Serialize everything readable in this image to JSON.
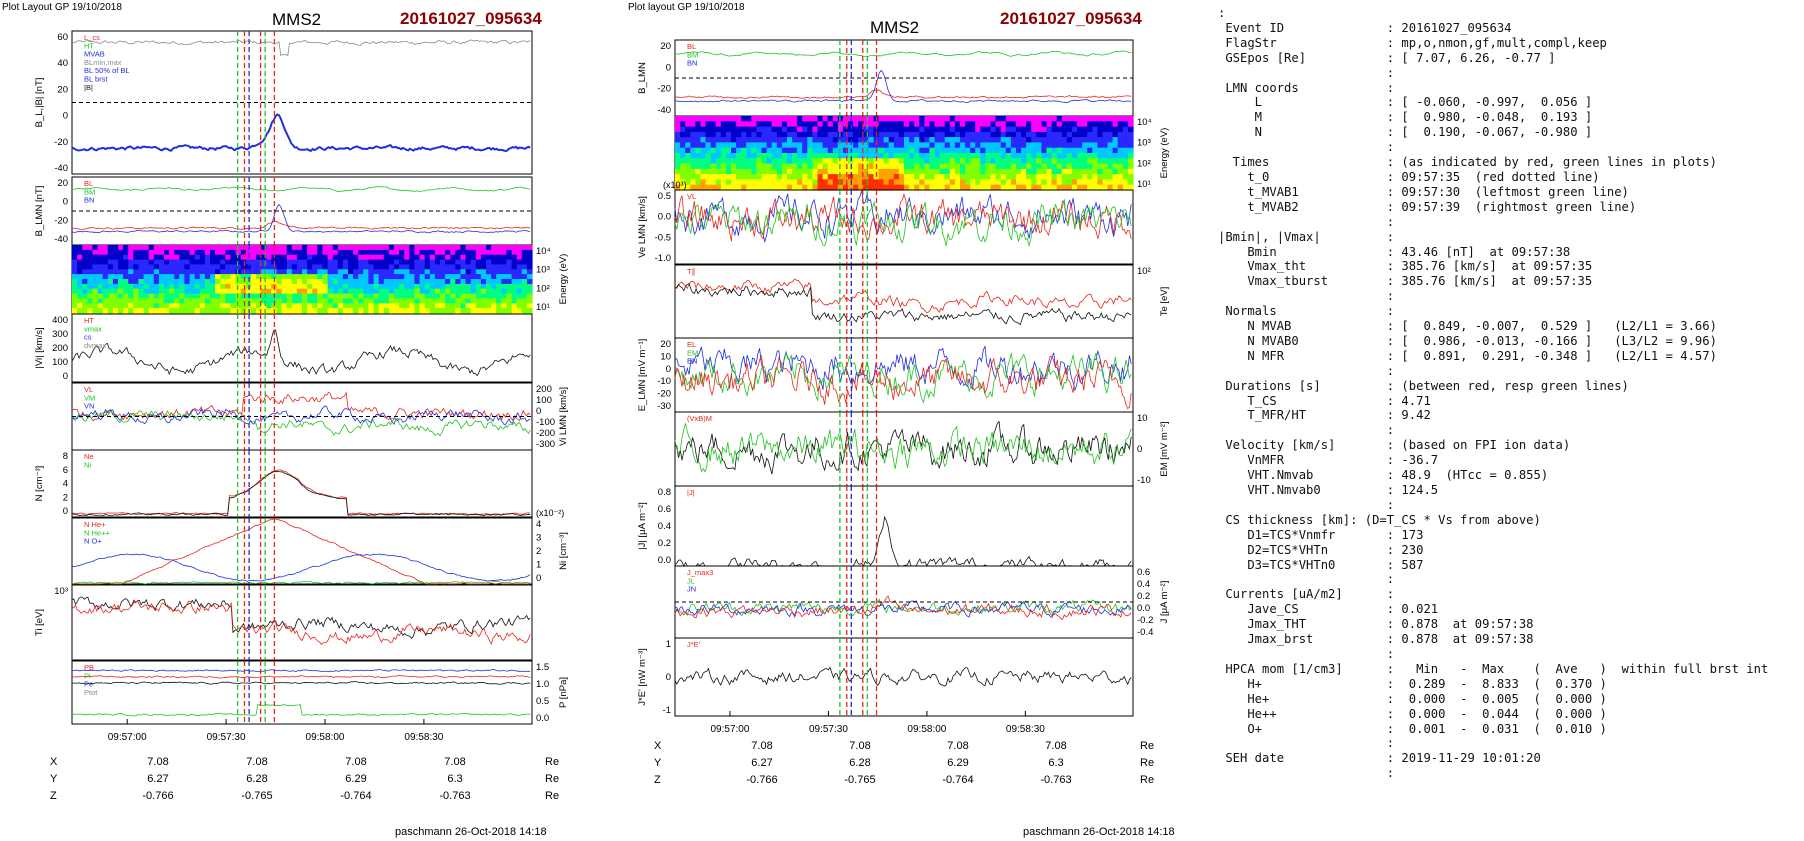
{
  "plot_left": {
    "header": "Plot Layout GP 19/10/2018",
    "spacecraft": "MMS2",
    "event": "20161027_095634",
    "footer": "paschmann 26-Oct-2018 14:18",
    "time_ticks": [
      "09:57:00",
      "09:57:30",
      "09:58:00",
      "09:58:30"
    ],
    "coord_rows": [
      {
        "label": "X",
        "values": [
          "7.08",
          "7.08",
          "7.08",
          "7.08"
        ],
        "unit": "Re"
      },
      {
        "label": "Y",
        "values": [
          "6.27",
          "6.28",
          "6.29",
          "6.3"
        ],
        "unit": "Re"
      },
      {
        "label": "Z",
        "values": [
          "-0.766",
          "-0.765",
          "-0.764",
          "-0.763"
        ],
        "unit": "Re"
      }
    ],
    "panels": [
      {
        "id": "bl",
        "ylabel": "B_L,|B| [nT]",
        "ticks_left": [
          "60",
          "40",
          "20",
          "0",
          "-20",
          "-40"
        ],
        "legend": [
          "L_cs",
          "HT",
          "MVAB",
          "BLmin,max",
          "BL 50% of BL",
          "BL brst",
          "|B|"
        ]
      },
      {
        "id": "blmn",
        "ylabel": "B_LMN [nT]",
        "ticks_left": [
          "20",
          "0",
          "-20",
          "-40"
        ],
        "legend": [
          "BL",
          "BM",
          "BN"
        ]
      },
      {
        "id": "spec",
        "ylabel": "Energy (eV)",
        "ticks_right": [
          "10⁴",
          "10³",
          "10²",
          "10¹"
        ]
      },
      {
        "id": "vi",
        "ylabel": "|Vi| [km/s]",
        "ticks_left": [
          "400",
          "300",
          "200",
          "100",
          "0"
        ],
        "legend": [
          "HT",
          "vmax",
          "cs",
          "dvmax"
        ]
      },
      {
        "id": "vilmn",
        "ylabel": "Vi LMN [km/s]",
        "ticks_right": [
          "200",
          "100",
          "0",
          "-100",
          "-200",
          "-300"
        ],
        "legend": [
          "VL",
          "VM",
          "VN"
        ]
      },
      {
        "id": "n",
        "ylabel": "N [cm⁻³]",
        "ticks_left": [
          "8",
          "6",
          "4",
          "2",
          "0"
        ],
        "legend": [
          "Ne",
          "Ni"
        ]
      },
      {
        "id": "ni",
        "ylabel": "Ni [cm⁻³]",
        "ticks_right": [
          "4",
          "3",
          "2",
          "1",
          "0"
        ],
        "scale": "(x10⁻²)",
        "legend": [
          "N He+",
          "N He++",
          "N O+"
        ]
      },
      {
        "id": "ti",
        "ylabel": "Ti [eV]",
        "ticks_left": [
          "10³"
        ]
      },
      {
        "id": "p",
        "ylabel": "P [nPa]",
        "ticks_right": [
          "1.5",
          "1.0",
          "0.5",
          "0.0"
        ],
        "legend": [
          "PB",
          "Pi",
          "Pe",
          "Ptot"
        ]
      }
    ]
  },
  "plot_right": {
    "header": "Plot layout GP 19/10/2018",
    "spacecraft": "MMS2",
    "event": "20161027_095634",
    "footer": "paschmann 26-Oct-2018 14:18",
    "time_ticks": [
      "09:57:00",
      "09:57:30",
      "09:58:00",
      "09:58:30"
    ],
    "coord_rows": [
      {
        "label": "X",
        "values": [
          "7.08",
          "7.08",
          "7.08",
          "7.08"
        ],
        "unit": "Re"
      },
      {
        "label": "Y",
        "values": [
          "6.27",
          "6.28",
          "6.29",
          "6.3"
        ],
        "unit": "Re"
      },
      {
        "label": "Z",
        "values": [
          "-0.766",
          "-0.765",
          "-0.764",
          "-0.763"
        ],
        "unit": "Re"
      }
    ],
    "panels": [
      {
        "id": "blmn",
        "ylabel": "B_LMN",
        "ticks_left": [
          "20",
          "0",
          "-20",
          "-40"
        ],
        "legend": [
          "BL",
          "BM",
          "BN"
        ]
      },
      {
        "id": "espec",
        "ylabel": "Energy (eV)",
        "ticks_right": [
          "10⁴",
          "10³",
          "10²",
          "10¹"
        ]
      },
      {
        "id": "ve",
        "ylabel": "Ve LMN [km/s]",
        "scale": "(x10³)",
        "ticks_left": [
          "0.5",
          "0.0",
          "-0.5",
          "-1.0"
        ],
        "legend": [
          "VL"
        ]
      },
      {
        "id": "te",
        "ylabel": "Te [eV]",
        "ticks_right": [
          "10²"
        ],
        "legend": [
          "T∥"
        ]
      },
      {
        "id": "elmn",
        "ylabel": "E_LMN [mV m⁻¹]",
        "ticks_left": [
          "20",
          "10",
          "0",
          "-10",
          "-20",
          "-30"
        ],
        "legend": [
          "EL",
          "EM",
          "EN"
        ]
      },
      {
        "id": "em",
        "ylabel": "EM [mV m⁻²]",
        "ticks_right": [
          "10",
          "0",
          "-10"
        ],
        "legend": [
          "(VxB)M"
        ]
      },
      {
        "id": "j",
        "ylabel": "|J| [μA m⁻²]",
        "ticks_left": [
          "0.8",
          "0.6",
          "0.4",
          "0.2",
          "0.0"
        ],
        "legend": [
          "|J|"
        ]
      },
      {
        "id": "jlmn",
        "ylabel": "J [μA m⁻²]",
        "ticks_right": [
          "0.6",
          "0.4",
          "0.2",
          "0.0",
          "-0.2",
          "-0.4"
        ],
        "legend": [
          "J_max3",
          "JL",
          "JN"
        ]
      },
      {
        "id": "je",
        "ylabel": "J*E' [nW m⁻³]",
        "ticks_left": [
          "1",
          "0",
          "-1"
        ],
        "legend": [
          "J*E'"
        ]
      }
    ]
  },
  "summary_lines": [
    ":",
    " Event ID              : 20161027_095634",
    " FlagStr               : mp,o,nmon,gf,mult,compl,keep",
    " GSEpos [Re]           : [ 7.07, 6.26, -0.77 ]",
    "                       :",
    " LMN coords            :",
    "     L                 : [ -0.060, -0.997,  0.056 ]",
    "     M                 : [  0.980, -0.048,  0.193 ]",
    "     N                 : [  0.190, -0.067, -0.980 ]",
    "                       :",
    "  Times                : (as indicated by red, green lines in plots)",
    "    t_0                : 09:57:35  (red dotted line)",
    "    t_MVAB1            : 09:57:30  (leftmost green line)",
    "    t_MVAB2            : 09:57:39  (rightmost green line)",
    "                       :",
    "|Bmin|, |Vmax|         :",
    "    Bmin               : 43.46 [nT]  at 09:57:38",
    "    Vmax_tht           : 385.76 [km/s]  at 09:57:35",
    "    Vmax_tburst        : 385.76 [km/s]  at 09:57:35",
    "                       :",
    " Normals               :",
    "    N MVAB             : [  0.849, -0.007,  0.529 ]   (L2/L1 = 3.66)",
    "    N MVAB0            : [  0.986, -0.013, -0.166 ]   (L3/L2 = 9.96)",
    "    N MFR              : [  0.891,  0.291, -0.348 ]   (L2/L1 = 4.57)",
    "                       :",
    " Durations [s]         : (between red, resp green lines)",
    "    T_CS               : 4.71",
    "    T_MFR/HT           : 9.42",
    "                       :",
    " Velocity [km/s]       : (based on FPI ion data)",
    "    VnMFR              : -36.7",
    "    VHT.Nmvab          : 48.9  (HTcc = 0.855)",
    "    VHT.Nmvab0         : 124.5",
    "                       :",
    " CS thickness [km]: (D=T_CS * Vs from above)",
    "    D1=TCS*Vnmfr       : 173",
    "    D2=TCS*VHTn        : 230",
    "    D3=TCS*VHTn0       : 587",
    "                       :",
    " Currents [uA/m2]      :",
    "    Jave_CS            : 0.021",
    "    Jmax_THT           : 0.878  at 09:57:38",
    "    Jmax_brst          : 0.878  at 09:57:38",
    "                       :",
    " HPCA mom [1/cm3]      :   Min   -  Max    (  Ave   )  within full brst int",
    "    H+                 :  0.289  -  8.833  (  0.370 )",
    "    He+                :  0.000  -  0.005  (  0.000 )",
    "    He++               :  0.000  -  0.044  (  0.000 )",
    "    O+                 :  0.001  -  0.031  (  0.010 )",
    "                       :",
    " SEH date              : 2019-11-29 10:01:20",
    "                       :"
  ],
  "colors": {
    "red": "#e8261c",
    "green": "#22c322",
    "blue": "#1f2fe0",
    "black": "#111111",
    "gray": "#8a8a8a",
    "title_red": "#8b0000"
  }
}
